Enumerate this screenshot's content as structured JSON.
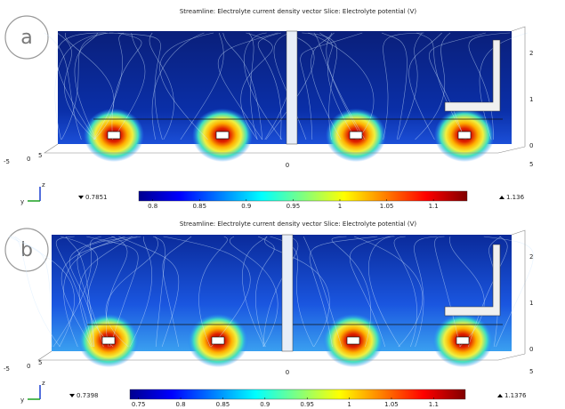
{
  "panels": [
    {
      "label": "a",
      "title": "Streamline: Electrolyte current density vector  Slice: Electrolyte potential (V)",
      "axis_right": [
        "2",
        "1",
        "0"
      ],
      "axis_left": [
        "-5",
        "0",
        "5"
      ],
      "axis_bottom": [
        "0",
        "5"
      ],
      "triad": [
        "z",
        "y"
      ],
      "colorbar": {
        "min": 0.7851,
        "max": 1.136,
        "min_label": "0.7851",
        "max_label": "1.136",
        "ticks": [
          0.8,
          0.85,
          0.9,
          0.95,
          1,
          1.05,
          1.1
        ]
      }
    },
    {
      "label": "b",
      "title": "Streamline: Electrolyte current density vector  Slice: Electrolyte potential (V)",
      "axis_right": [
        "2",
        "1",
        "0"
      ],
      "axis_left": [
        "-5",
        "0",
        "5"
      ],
      "axis_bottom": [
        "0",
        "5"
      ],
      "triad": [
        "z",
        "y"
      ],
      "colorbar": {
        "min": 0.7398,
        "max": 1.1376,
        "min_label": "0.7398",
        "max_label": "1.1376",
        "ticks": [
          0.75,
          0.8,
          0.85,
          0.9,
          0.95,
          1,
          1.05,
          1.1
        ]
      }
    }
  ]
}
